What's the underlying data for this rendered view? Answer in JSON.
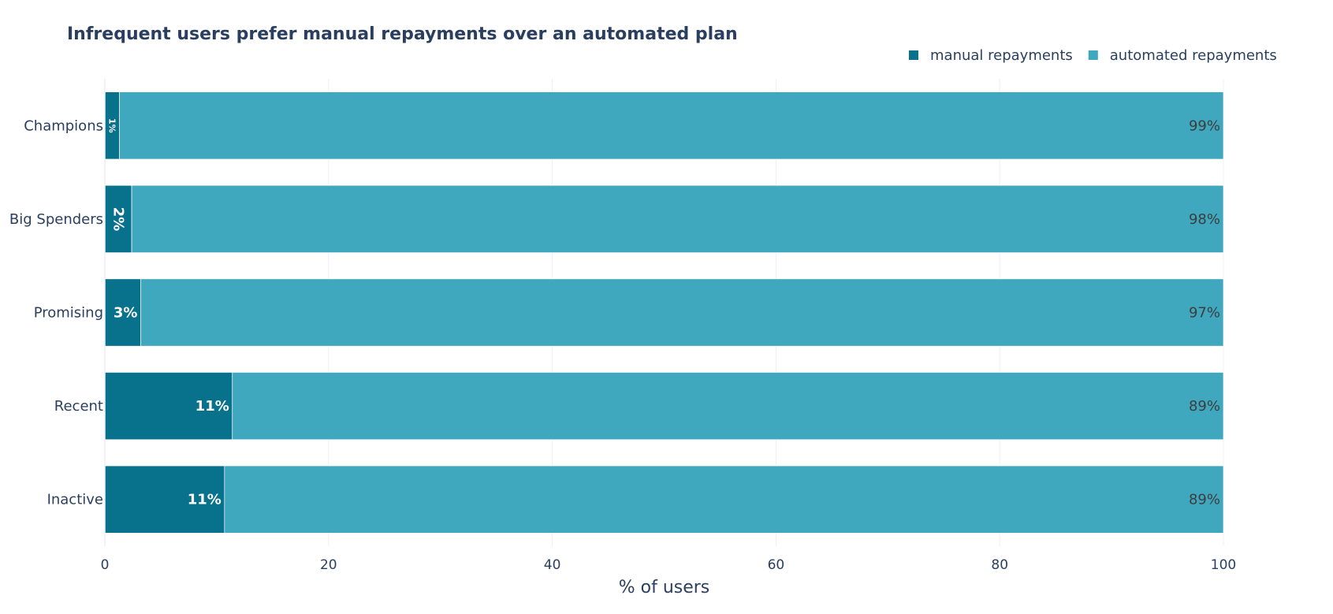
{
  "chart_data": {
    "type": "bar",
    "orientation": "horizontal",
    "barmode": "stack",
    "title": "Infrequent users prefer manual repayments over an automated plan",
    "xlabel": "% of users",
    "ylabel": "",
    "xlim": [
      0,
      100
    ],
    "x_ticks": [
      0,
      20,
      40,
      60,
      80,
      100
    ],
    "grid": true,
    "legend_position": "top-right",
    "categories": [
      "Champions",
      "Big Spenders",
      "Promising",
      "Recent",
      "Inactive"
    ],
    "series": [
      {
        "name": "manual repayments",
        "color": "#08718c",
        "values": [
          1.3,
          2.4,
          3.2,
          11.4,
          10.7
        ],
        "labels": [
          "1%",
          "2%",
          "3%",
          "11%",
          "11%"
        ]
      },
      {
        "name": "automated repayments",
        "color": "#3fa8bf",
        "values": [
          98.7,
          97.6,
          96.8,
          88.6,
          89.3
        ],
        "labels": [
          "99%",
          "98%",
          "97%",
          "89%",
          "89%"
        ]
      }
    ]
  }
}
